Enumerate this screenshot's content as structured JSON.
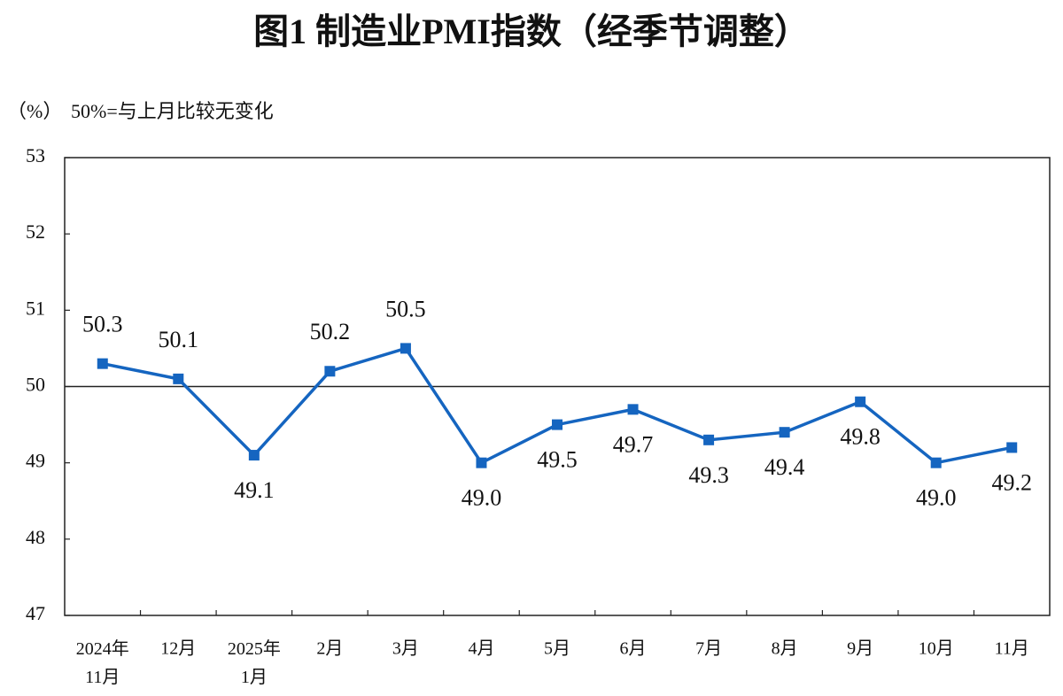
{
  "chart_data": {
    "type": "line",
    "title": "图1  制造业PMI指数（经季节调整）",
    "y_label": "（%）",
    "note": "50%=与上月比较无变化",
    "categories": [
      [
        "2024年",
        "11月"
      ],
      "12月",
      [
        "2025年",
        "1月"
      ],
      "2月",
      "3月",
      "4月",
      "5月",
      "6月",
      "7月",
      "8月",
      "9月",
      "10月",
      "11月"
    ],
    "series": [
      {
        "name": "制造业PMI",
        "color": "#1565c0",
        "values": [
          50.3,
          50.1,
          49.1,
          50.2,
          50.5,
          49.0,
          49.5,
          49.7,
          49.3,
          49.4,
          49.8,
          49.0,
          49.2
        ],
        "value_labels": [
          "50.3",
          "50.1",
          "49.1",
          "50.2",
          "50.5",
          "49.0",
          "49.5",
          "49.7",
          "49.3",
          "49.4",
          "49.8",
          "49.0",
          "49.2"
        ]
      }
    ],
    "ylim": [
      47,
      53
    ],
    "yticks": [
      47,
      48,
      49,
      50,
      51,
      52,
      53
    ],
    "reference_line": 50
  }
}
